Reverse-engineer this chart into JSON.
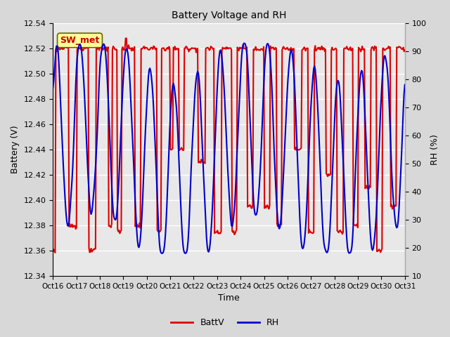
{
  "title": "Battery Voltage and RH",
  "xlabel": "Time",
  "ylabel_left": "Battery (V)",
  "ylabel_right": "RH (%)",
  "legend_label": "SW_met",
  "series_labels": [
    "BattV",
    "RH"
  ],
  "series_colors": [
    "#dd0000",
    "#0000cc"
  ],
  "xlim": [
    0,
    15
  ],
  "ylim_left": [
    12.34,
    12.54
  ],
  "ylim_right": [
    10,
    100
  ],
  "yticks_left": [
    12.34,
    12.36,
    12.38,
    12.4,
    12.42,
    12.44,
    12.46,
    12.48,
    12.5,
    12.52,
    12.54
  ],
  "yticks_right": [
    10,
    20,
    30,
    40,
    50,
    60,
    70,
    80,
    90,
    100
  ],
  "xtick_labels": [
    "Oct 16",
    "Oct 17",
    "Oct 18",
    "Oct 19",
    "Oct 20",
    "Oct 21",
    "Oct 22",
    "Oct 23",
    "Oct 24",
    "Oct 25",
    "Oct 26",
    "Oct 27",
    "Oct 28",
    "Oct 29",
    "Oct 30",
    "Oct 31"
  ],
  "xtick_positions": [
    0,
    1,
    2,
    3,
    4,
    5,
    6,
    7,
    8,
    9,
    10,
    11,
    12,
    13,
    14,
    15
  ],
  "fig_bg_color": "#d8d8d8",
  "plot_bg_outer": "#d8d8d8",
  "plot_bg_inner": "#e8e8e8",
  "grid_color": "#ffffff",
  "linewidth_batt": 1.5,
  "linewidth_rh": 1.5
}
